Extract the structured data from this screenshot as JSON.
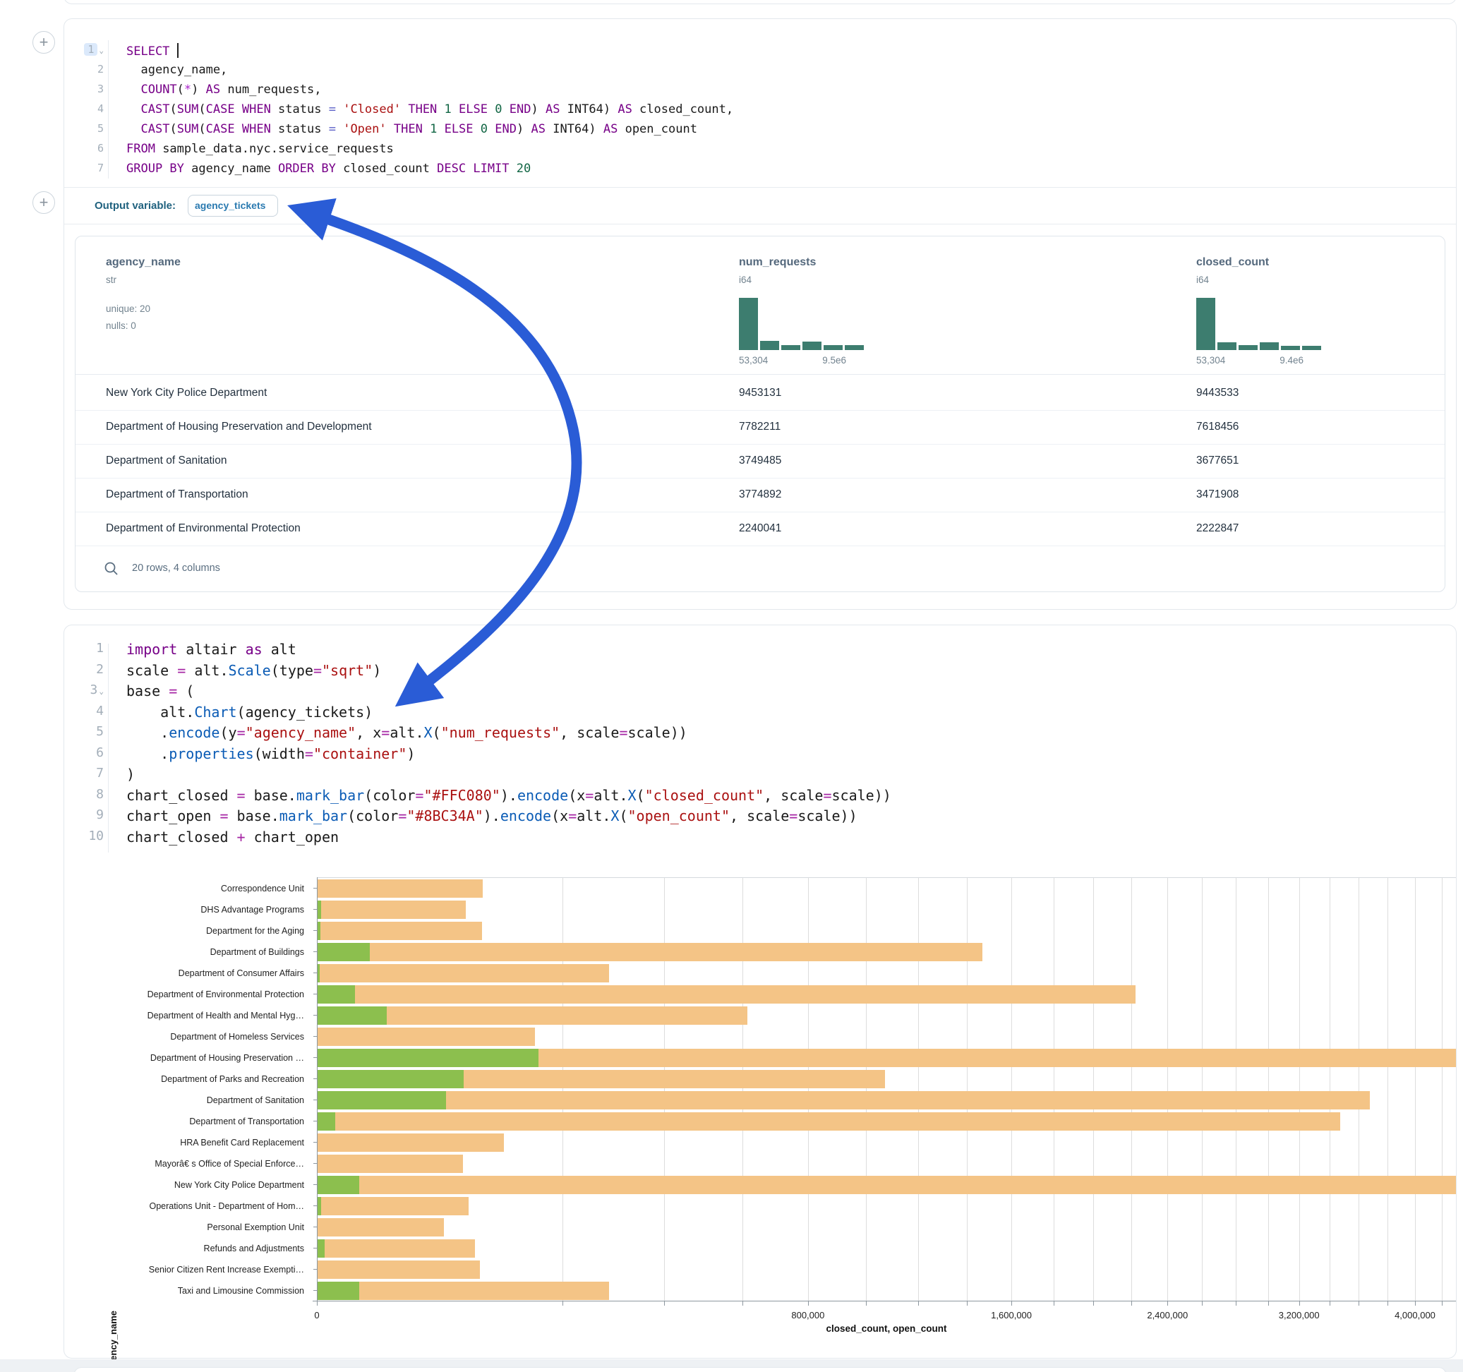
{
  "colors": {
    "arrow": "#2a5cd6",
    "histogram": "#3d7d6f",
    "bar_closed": "#F4C486",
    "bar_open": "#8CBF4E"
  },
  "sql_cell": {
    "line_numbers": [
      "1",
      "2",
      "3",
      "4",
      "5",
      "6",
      "7"
    ],
    "lines": [
      [
        [
          "k",
          "SELECT"
        ],
        [
          "p",
          " "
        ],
        [
          "cursor",
          ""
        ]
      ],
      [
        [
          "p",
          "  agency_name,"
        ]
      ],
      [
        [
          "p",
          "  "
        ],
        [
          "k",
          "COUNT"
        ],
        [
          "p",
          "("
        ],
        [
          "v",
          "*"
        ],
        [
          "p",
          ") "
        ],
        [
          "k",
          "AS"
        ],
        [
          "p",
          " num_requests,"
        ]
      ],
      [
        [
          "p",
          "  "
        ],
        [
          "k",
          "CAST"
        ],
        [
          "p",
          "("
        ],
        [
          "k",
          "SUM"
        ],
        [
          "p",
          "("
        ],
        [
          "k",
          "CASE"
        ],
        [
          "p",
          " "
        ],
        [
          "k",
          "WHEN"
        ],
        [
          "p",
          " status "
        ],
        [
          "eq",
          "="
        ],
        [
          "p",
          " "
        ],
        [
          "s",
          "'Closed'"
        ],
        [
          "p",
          " "
        ],
        [
          "k",
          "THEN"
        ],
        [
          "p",
          " "
        ],
        [
          "n",
          "1"
        ],
        [
          "p",
          " "
        ],
        [
          "k",
          "ELSE"
        ],
        [
          "p",
          " "
        ],
        [
          "n",
          "0"
        ],
        [
          "p",
          " "
        ],
        [
          "k",
          "END"
        ],
        [
          "p",
          ") "
        ],
        [
          "k",
          "AS"
        ],
        [
          "p",
          " INT64) "
        ],
        [
          "k",
          "AS"
        ],
        [
          "p",
          " closed_count,"
        ]
      ],
      [
        [
          "p",
          "  "
        ],
        [
          "k",
          "CAST"
        ],
        [
          "p",
          "("
        ],
        [
          "k",
          "SUM"
        ],
        [
          "p",
          "("
        ],
        [
          "k",
          "CASE"
        ],
        [
          "p",
          " "
        ],
        [
          "k",
          "WHEN"
        ],
        [
          "p",
          " status "
        ],
        [
          "eq",
          "="
        ],
        [
          "p",
          " "
        ],
        [
          "s",
          "'Open'"
        ],
        [
          "p",
          " "
        ],
        [
          "k",
          "THEN"
        ],
        [
          "p",
          " "
        ],
        [
          "n",
          "1"
        ],
        [
          "p",
          " "
        ],
        [
          "k",
          "ELSE"
        ],
        [
          "p",
          " "
        ],
        [
          "n",
          "0"
        ],
        [
          "p",
          " "
        ],
        [
          "k",
          "END"
        ],
        [
          "p",
          ") "
        ],
        [
          "k",
          "AS"
        ],
        [
          "p",
          " INT64) "
        ],
        [
          "k",
          "AS"
        ],
        [
          "p",
          " open_count"
        ]
      ],
      [
        [
          "k",
          "FROM"
        ],
        [
          "p",
          " sample_data.nyc.service_requests"
        ]
      ],
      [
        [
          "k",
          "GROUP BY"
        ],
        [
          "p",
          " agency_name "
        ],
        [
          "k",
          "ORDER BY"
        ],
        [
          "p",
          " closed_count "
        ],
        [
          "k",
          "DESC"
        ],
        [
          "p",
          " "
        ],
        [
          "k",
          "LIMIT"
        ],
        [
          "p",
          " "
        ],
        [
          "n",
          "20"
        ]
      ]
    ]
  },
  "output_bar": {
    "label": "Output variable:",
    "pill": "agency_tickets"
  },
  "table": {
    "columns": [
      {
        "name": "agency_name",
        "type": "str",
        "meta": [
          "unique: 20",
          "nulls: 0"
        ]
      },
      {
        "name": "num_requests",
        "type": "i64",
        "hist": {
          "bins": [
            1,
            0.17,
            0.1,
            0.16,
            0.09,
            0.09
          ],
          "min_label": "53,304",
          "max_label": "9.5e6"
        }
      },
      {
        "name": "closed_count",
        "type": "i64",
        "hist": {
          "bins": [
            1,
            0.15,
            0.09,
            0.15,
            0.08,
            0.08
          ],
          "min_label": "53,304",
          "max_label": "9.4e6"
        }
      }
    ],
    "rows": [
      [
        "New York City Police Department",
        "9453131",
        "9443533"
      ],
      [
        "Department of Housing Preservation and Development",
        "7782211",
        "7618456"
      ],
      [
        "Department of Sanitation",
        "3749485",
        "3677651"
      ],
      [
        "Department of Transportation",
        "3774892",
        "3471908"
      ],
      [
        "Department of Environmental Protection",
        "2240041",
        "2222847"
      ]
    ],
    "footer": "20 rows, 4 columns"
  },
  "python_cell": {
    "line_numbers": [
      "1",
      "2",
      "3",
      "4",
      "5",
      "6",
      "7",
      "8",
      "9",
      "10"
    ],
    "lines": [
      [
        [
          "k",
          "import"
        ],
        [
          "p",
          " altair "
        ],
        [
          "k",
          "as"
        ],
        [
          "p",
          " alt"
        ]
      ],
      [
        [
          "p",
          "scale "
        ],
        [
          "o",
          "="
        ],
        [
          "p",
          " alt."
        ],
        [
          "f",
          "Scale"
        ],
        [
          "p",
          "(type"
        ],
        [
          "o",
          "="
        ],
        [
          "s",
          "\"sqrt\""
        ],
        [
          "p",
          ")"
        ]
      ],
      [
        [
          "p",
          "base "
        ],
        [
          "o",
          "="
        ],
        [
          "p",
          " ("
        ]
      ],
      [
        [
          "p",
          "    alt."
        ],
        [
          "f",
          "Chart"
        ],
        [
          "p",
          "(agency_tickets)"
        ]
      ],
      [
        [
          "p",
          "    ."
        ],
        [
          "f",
          "encode"
        ],
        [
          "p",
          "(y"
        ],
        [
          "o",
          "="
        ],
        [
          "s",
          "\"agency_name\""
        ],
        [
          "p",
          ", x"
        ],
        [
          "o",
          "="
        ],
        [
          "p",
          "alt."
        ],
        [
          "f",
          "X"
        ],
        [
          "p",
          "("
        ],
        [
          "s",
          "\"num_requests\""
        ],
        [
          "p",
          ", scale"
        ],
        [
          "o",
          "="
        ],
        [
          "p",
          "scale))"
        ]
      ],
      [
        [
          "p",
          "    ."
        ],
        [
          "f",
          "properties"
        ],
        [
          "p",
          "(width"
        ],
        [
          "o",
          "="
        ],
        [
          "s",
          "\"container\""
        ],
        [
          "p",
          ")"
        ]
      ],
      [
        [
          "p",
          ")"
        ]
      ],
      [
        [
          "p",
          "chart_closed "
        ],
        [
          "o",
          "="
        ],
        [
          "p",
          " base."
        ],
        [
          "f",
          "mark_bar"
        ],
        [
          "p",
          "(color"
        ],
        [
          "o",
          "="
        ],
        [
          "s",
          "\"#FFC080\""
        ],
        [
          "p",
          ")."
        ],
        [
          "f",
          "encode"
        ],
        [
          "p",
          "(x"
        ],
        [
          "o",
          "="
        ],
        [
          "p",
          "alt."
        ],
        [
          "f",
          "X"
        ],
        [
          "p",
          "("
        ],
        [
          "s",
          "\"closed_count\""
        ],
        [
          "p",
          ", scale"
        ],
        [
          "o",
          "="
        ],
        [
          "p",
          "scale))"
        ]
      ],
      [
        [
          "p",
          "chart_open "
        ],
        [
          "o",
          "="
        ],
        [
          "p",
          " base."
        ],
        [
          "f",
          "mark_bar"
        ],
        [
          "p",
          "(color"
        ],
        [
          "o",
          "="
        ],
        [
          "s",
          "\"#8BC34A\""
        ],
        [
          "p",
          ")."
        ],
        [
          "f",
          "encode"
        ],
        [
          "p",
          "(x"
        ],
        [
          "o",
          "="
        ],
        [
          "p",
          "alt."
        ],
        [
          "f",
          "X"
        ],
        [
          "p",
          "("
        ],
        [
          "s",
          "\"open_count\""
        ],
        [
          "p",
          ", scale"
        ],
        [
          "o",
          "="
        ],
        [
          "p",
          "scale))"
        ]
      ],
      [
        [
          "p",
          "chart_closed "
        ],
        [
          "o",
          "+"
        ],
        [
          "p",
          " chart_open"
        ]
      ]
    ]
  },
  "chart_data": {
    "type": "bar",
    "orientation": "horizontal",
    "scale": "sqrt",
    "title": "",
    "xlabel": "closed_count, open_count",
    "ylabel": "agency_name",
    "x_tick_labels": [
      "0",
      "800,000",
      "1,600,000",
      "2,400,000",
      "3,200,000",
      "4,000,000"
    ],
    "x_tick_values": [
      0,
      800000,
      1600000,
      2400000,
      3200000,
      4000000
    ],
    "gridline_step": 200000,
    "legend": "none",
    "categories": [
      "Correspondence Unit",
      "DHS Advantage Programs",
      "Department for the Aging",
      "Department of Buildings",
      "Department of Consumer Affairs",
      "Department of Environmental Protection",
      "Department of Health and Mental Hyg…",
      "Department of Homeless Services",
      "Department of Housing Preservation …",
      "Department of Parks and Recreation",
      "Department of Sanitation",
      "Department of Transportation",
      "HRA Benefit Card Replacement",
      "Mayorâ€ s Office of Special Enforce…",
      "New York City Police Department",
      "Operations Unit - Department of Hom…",
      "Personal Exemption Unit",
      "Refunds and Adjustments",
      "Senior Citizen Rent Increase Exempti…",
      "Taxi and Limousine Commission"
    ],
    "series": [
      {
        "name": "closed_count",
        "color": "#F4C486",
        "values": [
          91600,
          73800,
          90800,
          1470000,
          283500,
          2222847,
          615000,
          157800,
          7618456,
          1070000,
          3677651,
          3471908,
          115700,
          70500,
          9443533,
          76700,
          53300,
          83100,
          88100,
          282500
        ]
      },
      {
        "name": "open_count",
        "color": "#8CBF4E",
        "values": [
          0,
          60,
          40,
          9300,
          30,
          4900,
          16100,
          0,
          163000,
          71700,
          55300,
          1100,
          0,
          0,
          6000,
          60,
          0,
          190,
          0,
          5900
        ]
      }
    ]
  }
}
